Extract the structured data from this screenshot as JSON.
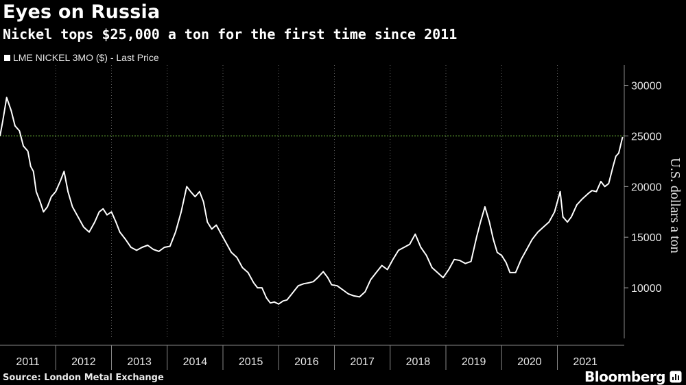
{
  "header": {
    "title": "Eyes on Russia",
    "subtitle": "Nickel tops $25,000 a ton for the first time since 2011",
    "legend_label": "LME NICKEL 3MO ($) - Last Price"
  },
  "footer": {
    "source": "Source: London Metal Exchange",
    "brand": "Bloomberg"
  },
  "colors": {
    "background": "#000000",
    "series": "#ffffff",
    "reference_line": "#6fbf3a",
    "grid": "#666666"
  },
  "chart_data": {
    "type": "line",
    "title": "Eyes on Russia",
    "subtitle": "Nickel tops $25,000 a ton for the first time since 2011",
    "ylabel": "U.S. dollars a ton",
    "ylim": [
      5000,
      32000
    ],
    "xlim": [
      2011.0,
      2022.2
    ],
    "yticks": [
      10000,
      15000,
      20000,
      25000,
      30000
    ],
    "xticks": [
      "2011",
      "2012",
      "2013",
      "2014",
      "2015",
      "2016",
      "2017",
      "2018",
      "2019",
      "2020",
      "2021"
    ],
    "grid": "vertical dotted",
    "legend_position": "top-left",
    "reference_line": {
      "y": 25000,
      "style": "dotted"
    },
    "series": [
      {
        "name": "LME NICKEL 3MO ($) - Last Price",
        "x": [
          2011.0,
          2011.05,
          2011.12,
          2011.2,
          2011.27,
          2011.35,
          2011.42,
          2011.5,
          2011.55,
          2011.6,
          2011.65,
          2011.72,
          2011.78,
          2011.85,
          2011.92,
          2012.0,
          2012.08,
          2012.15,
          2012.22,
          2012.3,
          2012.4,
          2012.5,
          2012.6,
          2012.7,
          2012.78,
          2012.85,
          2012.92,
          2013.0,
          2013.08,
          2013.15,
          2013.25,
          2013.35,
          2013.45,
          2013.55,
          2013.65,
          2013.75,
          2013.85,
          2013.95,
          2014.05,
          2014.15,
          2014.25,
          2014.35,
          2014.42,
          2014.5,
          2014.58,
          2014.65,
          2014.72,
          2014.8,
          2014.88,
          2014.95,
          2015.05,
          2015.15,
          2015.25,
          2015.35,
          2015.45,
          2015.55,
          2015.62,
          2015.7,
          2015.78,
          2015.85,
          2015.92,
          2016.0,
          2016.08,
          2016.15,
          2016.25,
          2016.35,
          2016.45,
          2016.55,
          2016.62,
          2016.7,
          2016.8,
          2016.88,
          2016.95,
          2017.05,
          2017.15,
          2017.25,
          2017.35,
          2017.45,
          2017.55,
          2017.65,
          2017.75,
          2017.85,
          2017.95,
          2018.05,
          2018.15,
          2018.25,
          2018.35,
          2018.45,
          2018.55,
          2018.65,
          2018.75,
          2018.85,
          2018.95,
          2019.05,
          2019.15,
          2019.25,
          2019.35,
          2019.45,
          2019.55,
          2019.62,
          2019.7,
          2019.78,
          2019.85,
          2019.92,
          2020.0,
          2020.08,
          2020.15,
          2020.25,
          2020.35,
          2020.45,
          2020.55,
          2020.65,
          2020.75,
          2020.85,
          2020.95,
          2021.05,
          2021.1,
          2021.18,
          2021.25,
          2021.35,
          2021.45,
          2021.55,
          2021.62,
          2021.7,
          2021.78,
          2021.85,
          2021.92,
          2022.0,
          2022.05,
          2022.1,
          2022.14,
          2022.17
        ],
        "y": [
          25000,
          26500,
          28800,
          27500,
          26000,
          25500,
          24000,
          23500,
          22000,
          21500,
          19500,
          18500,
          17500,
          18000,
          19000,
          19500,
          20500,
          21500,
          19500,
          18000,
          17000,
          16000,
          15500,
          16500,
          17500,
          17800,
          17200,
          17500,
          16500,
          15500,
          14800,
          14000,
          13700,
          14000,
          14200,
          13800,
          13600,
          14000,
          14100,
          15500,
          17500,
          20000,
          19500,
          19000,
          19500,
          18500,
          16500,
          15800,
          16200,
          15500,
          14500,
          13500,
          13000,
          12000,
          11500,
          10500,
          10000,
          10000,
          9000,
          8500,
          8600,
          8400,
          8700,
          8800,
          9500,
          10200,
          10400,
          10500,
          10600,
          11000,
          11600,
          11000,
          10300,
          10200,
          9800,
          9400,
          9200,
          9100,
          9600,
          10800,
          11500,
          12200,
          11800,
          12800,
          13700,
          14000,
          14300,
          15300,
          14000,
          13200,
          12000,
          11500,
          11000,
          11800,
          12800,
          12700,
          12400,
          12600,
          15000,
          16500,
          18000,
          16500,
          14800,
          13500,
          13200,
          12500,
          11500,
          11500,
          12800,
          13800,
          14800,
          15500,
          16000,
          16500,
          17500,
          19500,
          17000,
          16500,
          17000,
          18200,
          18800,
          19300,
          19600,
          19500,
          20500,
          20000,
          20300,
          22000,
          23000,
          23300,
          24200,
          24900
        ]
      }
    ]
  }
}
